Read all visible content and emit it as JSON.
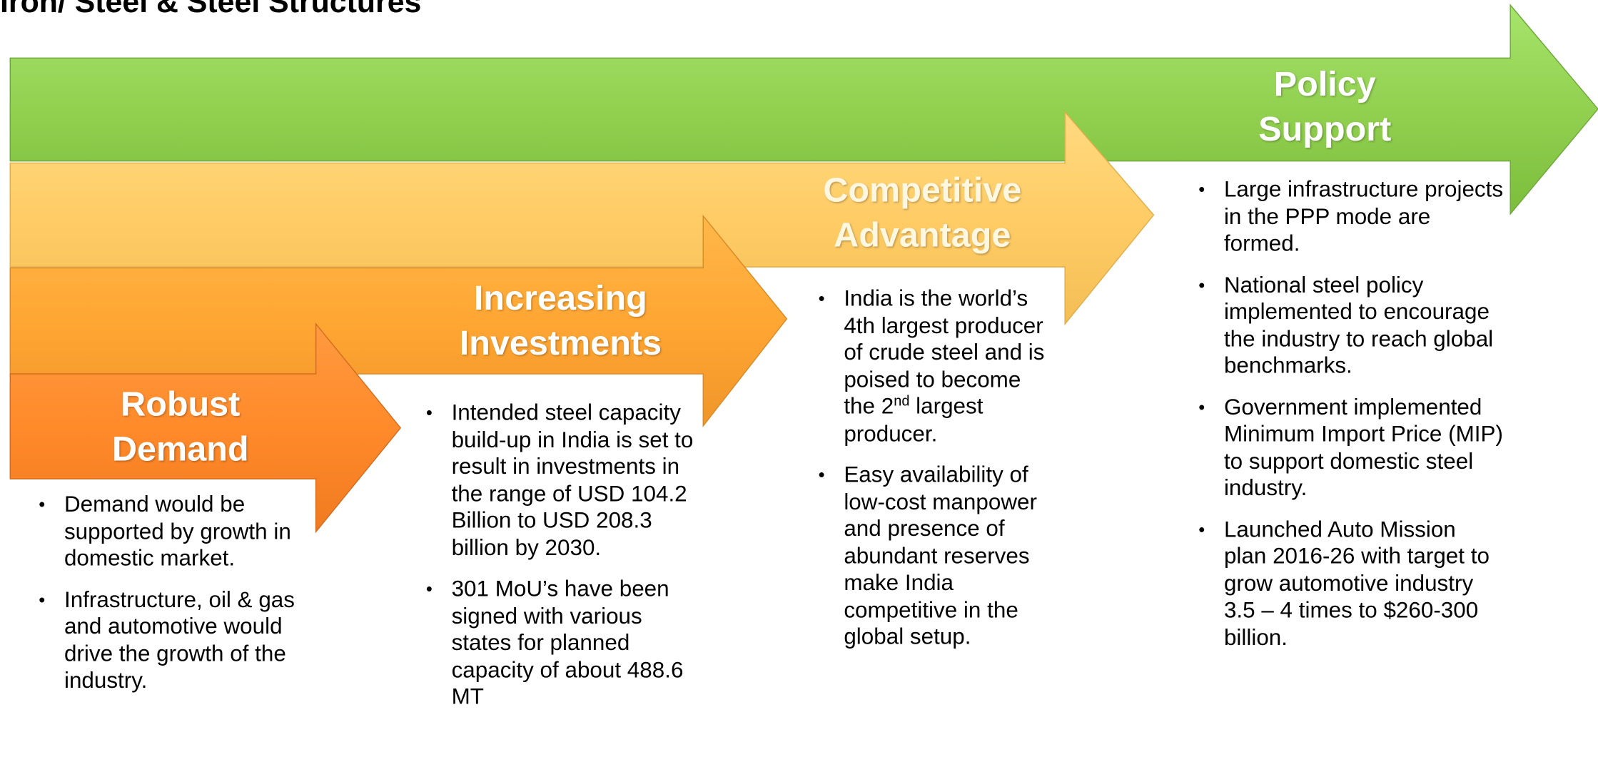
{
  "header": {
    "title": "Iron/ Steel & Steel Structures"
  },
  "stages": [
    {
      "title_lines": [
        "Robust",
        "Demand"
      ],
      "bullets": [
        "Demand would be supported by growth in domestic market.",
        "Infrastructure, oil & gas and automotive would drive the growth of the industry."
      ]
    },
    {
      "title_lines": [
        "Increasing",
        "Investments"
      ],
      "bullets": [
        "Intended steel capacity build-up in India is set to result in investments in the range of USD 104.2 Billion to USD 208.3 billion by 2030.",
        "301 MoU’s have been signed with various states for planned capacity of about 488.6 MT"
      ]
    },
    {
      "title_lines": [
        "Competitive",
        "Advantage"
      ],
      "bullets": [
        {
          "text": "India is the world’s 4th largest producer of crude steel and is poised to become the 2",
          "sup": "nd",
          "after": " largest producer."
        },
        "Easy availability of low-cost manpower and presence of abundant reserves make India competitive in the global setup."
      ]
    },
    {
      "title_lines": [
        "Policy",
        "Support"
      ],
      "bullets": [
        "Large infrastructure projects in the PPP mode are formed.",
        "National steel policy implemented to encourage the industry to reach global benchmarks.",
        "Government implemented Minimum Import Price (MIP) to support domestic steel industry.",
        "Launched Auto Mission plan 2016-26 with target to grow automotive industry 3.5 – 4 times to $260-300 billion."
      ]
    }
  ]
}
